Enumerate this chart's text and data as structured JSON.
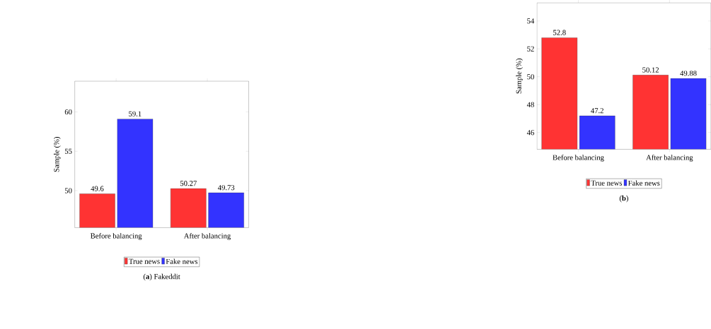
{
  "chart_data": [
    {
      "type": "bar",
      "title": "(**a**) Fakeddit",
      "ylabel": "Sample (%)",
      "categories": [
        "Before balancing",
        "After balancing"
      ],
      "series": [
        {
          "name": "True news",
          "color": "#ff3333",
          "values": [
            49.6,
            50.27
          ]
        },
        {
          "name": "Fake news",
          "color": "#3333ff",
          "values": [
            59.1,
            49.73
          ]
        }
      ],
      "ylim": [
        45.3,
        63.9
      ],
      "yticks": [
        50,
        55,
        60
      ],
      "data_labels": true,
      "legend": "bottom"
    },
    {
      "type": "bar",
      "title": "(**b**)",
      "ylabel": "Sample (%)",
      "categories": [
        "Before balancing",
        "After balancing"
      ],
      "series": [
        {
          "name": "True news",
          "color": "#ff3333",
          "values": [
            52.8,
            50.12
          ]
        },
        {
          "name": "Fake news",
          "color": "#3333ff",
          "values": [
            47.2,
            49.88
          ]
        }
      ],
      "ylim": [
        44.8,
        55.3
      ],
      "yticks": [
        46,
        48,
        50,
        52,
        54
      ],
      "data_labels": true,
      "legend": "bottom"
    }
  ]
}
